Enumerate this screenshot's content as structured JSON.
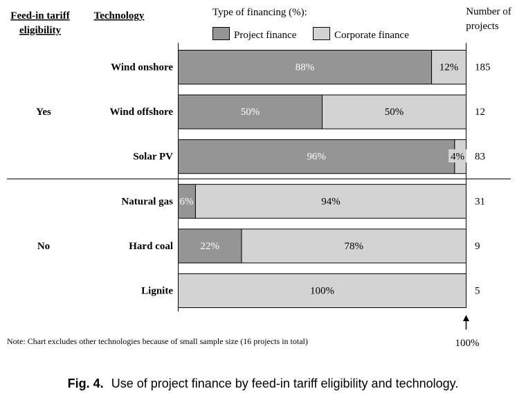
{
  "header": {
    "col_eligibility": "Feed-in tariff eligibility",
    "col_eligibility_lines": [
      "Feed-in tariff",
      "eligibility"
    ],
    "col_technology": "Technology",
    "legend_title": "Type of financing (%):",
    "col_projects": "Number of projects",
    "col_projects_lines": [
      "Number of",
      "projects"
    ]
  },
  "chart_data": {
    "type": "bar",
    "orientation": "horizontal",
    "stacked": true,
    "categories": [
      "Wind onshore",
      "Wind offshore",
      "Solar PV",
      "Natural gas",
      "Hard coal",
      "Lignite"
    ],
    "series": [
      {
        "name": "Project finance",
        "values": [
          88,
          50,
          96,
          6,
          22,
          0
        ],
        "color": "#959595"
      },
      {
        "name": "Corporate finance",
        "values": [
          12,
          50,
          4,
          94,
          78,
          100
        ],
        "color": "#d3d3d3"
      }
    ],
    "data_labels": [
      [
        "88%",
        "50%",
        "96%",
        "6%",
        "22%",
        ""
      ],
      [
        "12%",
        "50%",
        "4%",
        "94%",
        "78%",
        "100%"
      ]
    ],
    "groups": [
      {
        "label": "Yes",
        "categories": [
          "Wind onshore",
          "Wind offshore",
          "Solar PV"
        ]
      },
      {
        "label": "No",
        "categories": [
          "Natural gas",
          "Hard coal",
          "Lignite"
        ]
      }
    ],
    "project_counts": [
      185,
      12,
      83,
      31,
      9,
      5
    ],
    "xlim": [
      0,
      100
    ],
    "reference_marker": "100%",
    "legend": [
      "Project finance",
      "Corporate finance"
    ],
    "legend_position": "top"
  },
  "note": "Note: Chart excludes other technologies because of small sample size (16 projects in total)",
  "caption": {
    "label": "Fig. 4.",
    "text": "Use of project finance by feed-in tariff eligibility and technology."
  }
}
